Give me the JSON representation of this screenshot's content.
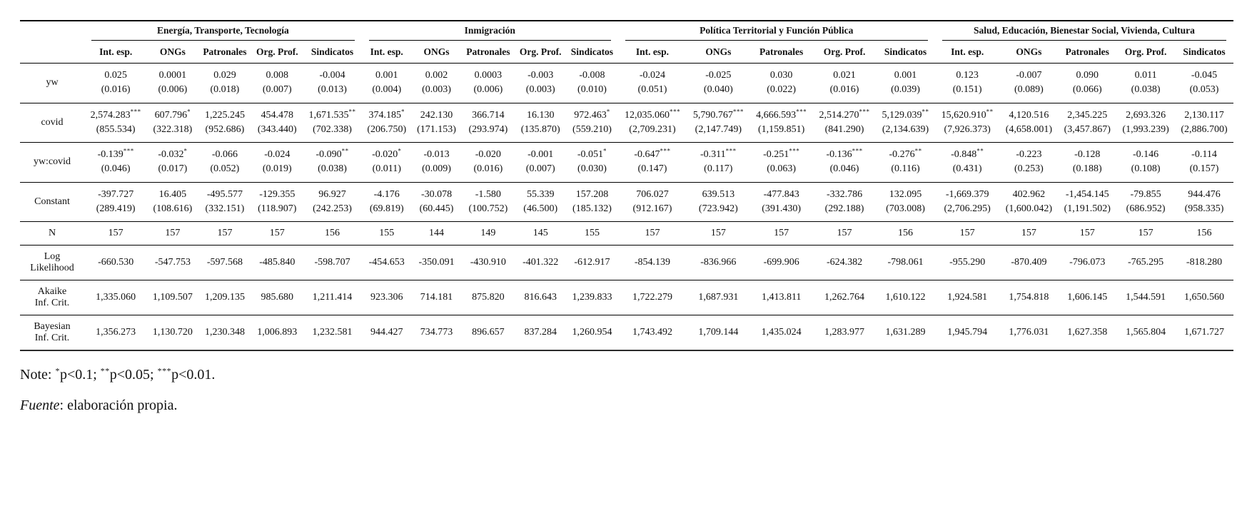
{
  "table": {
    "groups": [
      "Energía, Transporte, Tecnología",
      "Inmigración",
      "Política Territorial y Función Pública",
      "Salud, Educación, Bienestar Social, Vivienda, Cultura"
    ],
    "subcolumns": [
      "Int. esp.",
      "ONGs",
      "Patronales",
      "Org. Prof.",
      "Sindicatos"
    ],
    "coef_rows": [
      {
        "label": [
          "yw"
        ],
        "est": [
          "0.025",
          "0.0001",
          "0.029",
          "0.008",
          "-0.004",
          "0.001",
          "0.002",
          "0.0003",
          "-0.003",
          "-0.008",
          "-0.024",
          "-0.025",
          "0.030",
          "0.021",
          "0.001",
          "0.123",
          "-0.007",
          "0.090",
          "0.011",
          "-0.045"
        ],
        "stars": [
          "",
          "",
          "",
          "",
          "",
          "",
          "",
          "",
          "",
          "",
          "",
          "",
          "",
          "",
          "",
          "",
          "",
          "",
          "",
          ""
        ],
        "se": [
          "(0.016)",
          "(0.006)",
          "(0.018)",
          "(0.007)",
          "(0.013)",
          "(0.004)",
          "(0.003)",
          "(0.006)",
          "(0.003)",
          "(0.010)",
          "(0.051)",
          "(0.040)",
          "(0.022)",
          "(0.016)",
          "(0.039)",
          "(0.151)",
          "(0.089)",
          "(0.066)",
          "(0.038)",
          "(0.053)"
        ]
      },
      {
        "label": [
          "covid"
        ],
        "est": [
          "2,574.283",
          "607.796",
          "1,225.245",
          "454.478",
          "1,671.535",
          "374.185",
          "242.130",
          "366.714",
          "16.130",
          "972.463",
          "12,035.060",
          "5,790.767",
          "4,666.593",
          "2,514.270",
          "5,129.039",
          "15,620.910",
          "4,120.516",
          "2,345.225",
          "2,693.326",
          "2,130.117"
        ],
        "stars": [
          "***",
          "*",
          "",
          "",
          "**",
          "*",
          "",
          "",
          "",
          "*",
          "***",
          "***",
          "***",
          "***",
          "**",
          "**",
          "",
          "",
          "",
          ""
        ],
        "se": [
          "(855.534)",
          "(322.318)",
          "(952.686)",
          "(343.440)",
          "(702.338)",
          "(206.750)",
          "(171.153)",
          "(293.974)",
          "(135.870)",
          "(559.210)",
          "(2,709.231)",
          "(2,147.749)",
          "(1,159.851)",
          "(841.290)",
          "(2,134.639)",
          "(7,926.373)",
          "(4,658.001)",
          "(3,457.867)",
          "(1,993.239)",
          "(2,886.700)"
        ]
      },
      {
        "label": [
          "yw:covid"
        ],
        "est": [
          "-0.139",
          "-0.032",
          "-0.066",
          "-0.024",
          "-0.090",
          "-0.020",
          "-0.013",
          "-0.020",
          "-0.001",
          "-0.051",
          "-0.647",
          "-0.311",
          "-0.251",
          "-0.136",
          "-0.276",
          "-0.848",
          "-0.223",
          "-0.128",
          "-0.146",
          "-0.114"
        ],
        "stars": [
          "***",
          "*",
          "",
          "",
          "**",
          "*",
          "",
          "",
          "",
          "*",
          "***",
          "***",
          "***",
          "***",
          "**",
          "**",
          "",
          "",
          "",
          ""
        ],
        "se": [
          "(0.046)",
          "(0.017)",
          "(0.052)",
          "(0.019)",
          "(0.038)",
          "(0.011)",
          "(0.009)",
          "(0.016)",
          "(0.007)",
          "(0.030)",
          "(0.147)",
          "(0.117)",
          "(0.063)",
          "(0.046)",
          "(0.116)",
          "(0.431)",
          "(0.253)",
          "(0.188)",
          "(0.108)",
          "(0.157)"
        ]
      },
      {
        "label": [
          "Constant"
        ],
        "est": [
          "-397.727",
          "16.405",
          "-495.577",
          "-129.355",
          "96.927",
          "-4.176",
          "-30.078",
          "-1.580",
          "55.339",
          "157.208",
          "706.027",
          "639.513",
          "-477.843",
          "-332.786",
          "132.095",
          "-1,669.379",
          "402.962",
          "-1,454.145",
          "-79.855",
          "944.476"
        ],
        "stars": [
          "",
          "",
          "",
          "",
          "",
          "",
          "",
          "",
          "",
          "",
          "",
          "",
          "",
          "",
          "",
          "",
          "",
          "",
          "",
          ""
        ],
        "se": [
          "(289.419)",
          "(108.616)",
          "(332.151)",
          "(118.907)",
          "(242.253)",
          "(69.819)",
          "(60.445)",
          "(100.752)",
          "(46.500)",
          "(185.132)",
          "(912.167)",
          "(723.942)",
          "(391.430)",
          "(292.188)",
          "(703.008)",
          "(2,706.295)",
          "(1,600.042)",
          "(1,191.502)",
          "(686.952)",
          "(958.335)"
        ]
      }
    ],
    "stat_rows": [
      {
        "label": [
          "N"
        ],
        "tall": false,
        "values": [
          "157",
          "157",
          "157",
          "157",
          "156",
          "155",
          "144",
          "149",
          "145",
          "155",
          "157",
          "157",
          "157",
          "157",
          "156",
          "157",
          "157",
          "157",
          "157",
          "156"
        ]
      },
      {
        "label": [
          "Log",
          "Likelihood"
        ],
        "tall": true,
        "values": [
          "-660.530",
          "-547.753",
          "-597.568",
          "-485.840",
          "-598.707",
          "-454.653",
          "-350.091",
          "-430.910",
          "-401.322",
          "-612.917",
          "-854.139",
          "-836.966",
          "-699.906",
          "-624.382",
          "-798.061",
          "-955.290",
          "-870.409",
          "-796.073",
          "-765.295",
          "-818.280"
        ]
      },
      {
        "label": [
          "Akaike",
          "Inf. Crit."
        ],
        "tall": true,
        "values": [
          "1,335.060",
          "1,109.507",
          "1,209.135",
          "985.680",
          "1,211.414",
          "923.306",
          "714.181",
          "875.820",
          "816.643",
          "1,239.833",
          "1,722.279",
          "1,687.931",
          "1,413.811",
          "1,262.764",
          "1,610.122",
          "1,924.581",
          "1,754.818",
          "1,606.145",
          "1,544.591",
          "1,650.560"
        ]
      },
      {
        "label": [
          "Bayesian",
          "Inf. Crit."
        ],
        "tall": true,
        "values": [
          "1,356.273",
          "1,130.720",
          "1,230.348",
          "1,006.893",
          "1,232.581",
          "944.427",
          "734.773",
          "896.657",
          "837.284",
          "1,260.954",
          "1,743.492",
          "1,709.144",
          "1,435.024",
          "1,283.977",
          "1,631.289",
          "1,945.794",
          "1,776.031",
          "1,627.358",
          "1,565.804",
          "1,671.727"
        ]
      }
    ]
  },
  "notes": {
    "prefix": "Note: ",
    "items": [
      {
        "stars": "*",
        "text": "p<0.1; "
      },
      {
        "stars": "**",
        "text": "p<0.05; "
      },
      {
        "stars": "***",
        "text": "p<0.01."
      }
    ],
    "source_label": "Fuente",
    "source_rest": ": elaboración propia."
  }
}
